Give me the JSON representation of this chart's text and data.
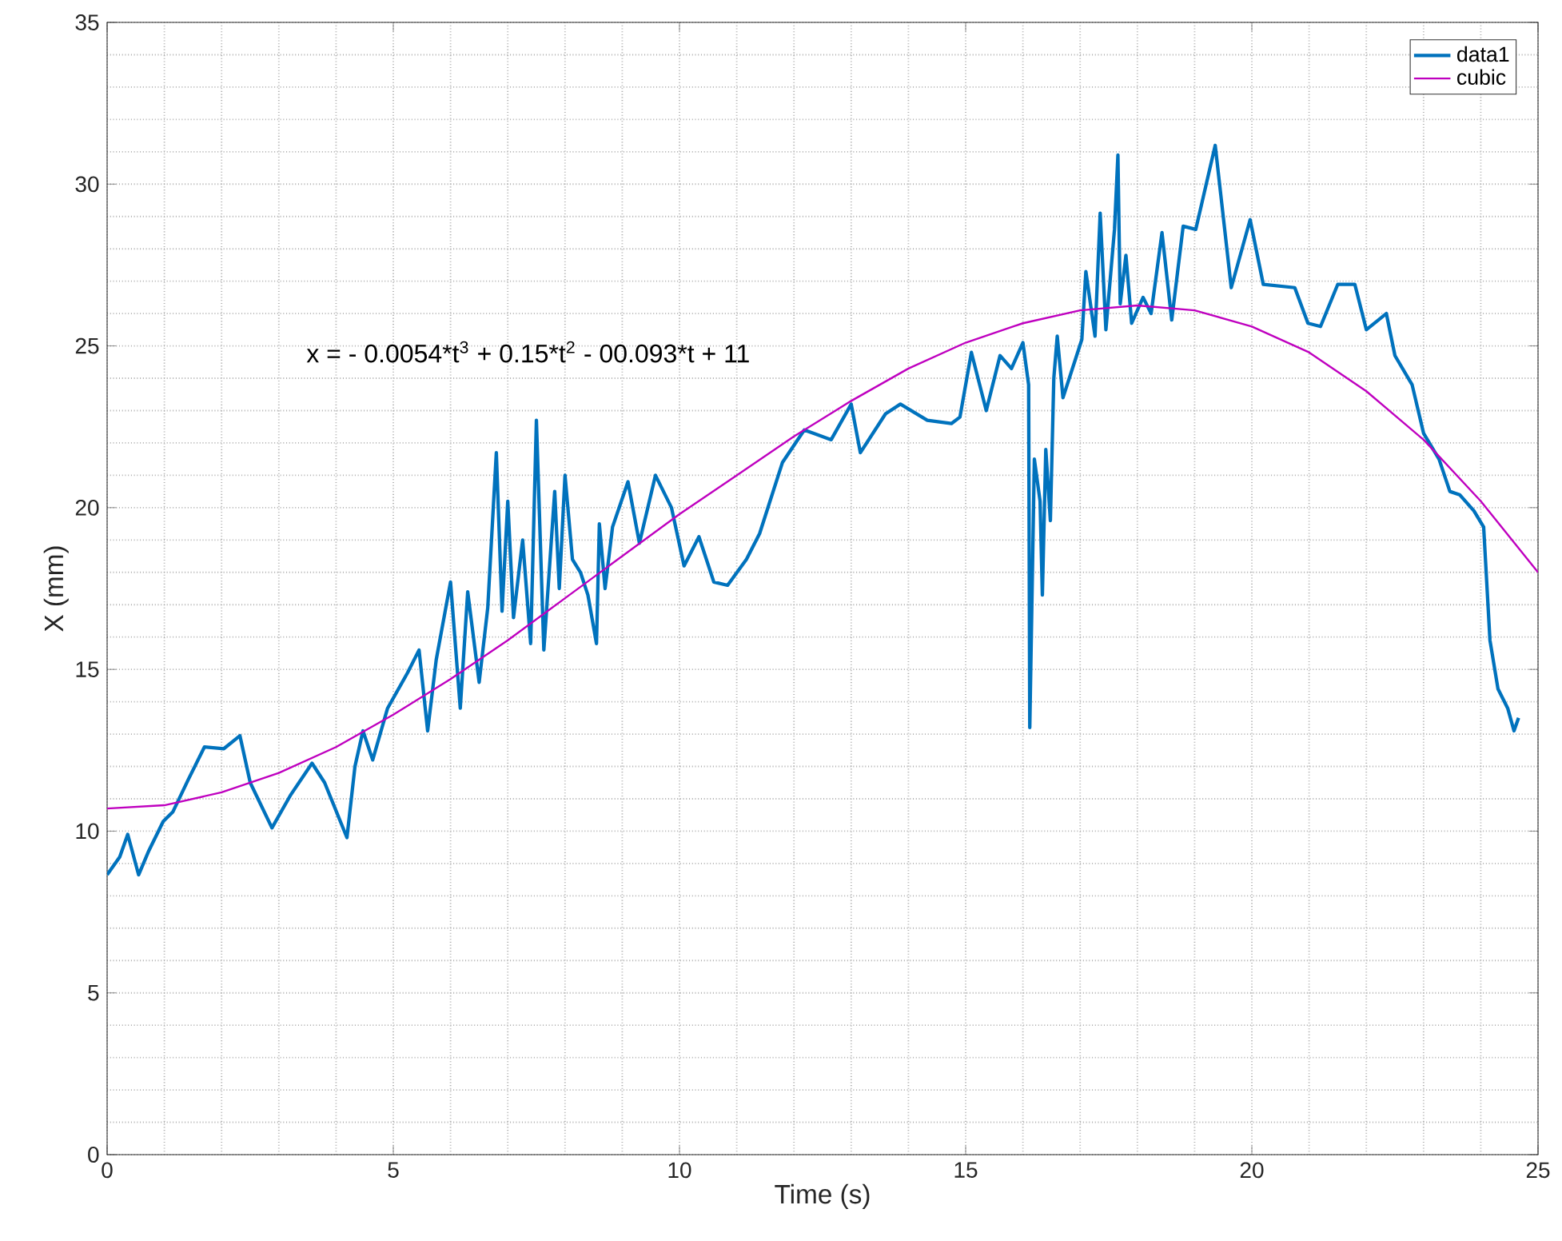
{
  "chart_data": {
    "type": "line",
    "xlabel": "Time (s)",
    "ylabel": "X (mm)",
    "xlim": [
      0,
      25
    ],
    "ylim": [
      0,
      35
    ],
    "xticks": [
      0,
      5,
      10,
      15,
      20,
      25
    ],
    "yticks": [
      0,
      5,
      10,
      15,
      20,
      25,
      30,
      35
    ],
    "grid": true,
    "legend": "top right",
    "marker": "none",
    "line_style": "solid",
    "annotations": [
      "x = - 0.0054*t$^{3}$ + 0.15*t$^{2}$ - 00.093*t + 11"
    ],
    "series": [
      {
        "name": "data1",
        "color": "#0072bd",
        "x": [
          0,
          0.22,
          0.36,
          0.55,
          0.73,
          0.98,
          1.15,
          1.42,
          1.7,
          2.04,
          2.32,
          2.5,
          2.88,
          3.2,
          3.58,
          3.8,
          4.19,
          4.33,
          4.47,
          4.64,
          4.9,
          5.25,
          5.45,
          5.6,
          5.75,
          6.0,
          6.17,
          6.3,
          6.5,
          6.65,
          6.8,
          6.9,
          7.0,
          7.1,
          7.26,
          7.4,
          7.5,
          7.63,
          7.82,
          7.9,
          8.0,
          8.13,
          8.27,
          8.4,
          8.55,
          8.6,
          8.7,
          8.83,
          9.1,
          9.3,
          9.58,
          9.86,
          10.08,
          10.34,
          10.6,
          10.84,
          11.17,
          11.4,
          11.8,
          12.18,
          12.65,
          13.0,
          13.16,
          13.6,
          13.86,
          14.33,
          14.75,
          14.9,
          15.1,
          15.36,
          15.6,
          15.8,
          16.0,
          16.1,
          16.12,
          16.2,
          16.3,
          16.34,
          16.4,
          16.48,
          16.54,
          16.6,
          16.7,
          17.03,
          17.1,
          17.26,
          17.35,
          17.45,
          17.6,
          17.66,
          17.7,
          17.8,
          17.9,
          18.1,
          18.24,
          18.43,
          18.6,
          18.8,
          19.02,
          19.36,
          19.64,
          19.97,
          20.2,
          20.75,
          20.98,
          21.2,
          21.5,
          21.8,
          22.0,
          22.35,
          22.5,
          22.8,
          23.0,
          23.27,
          23.46,
          23.63,
          23.88,
          24.05,
          24.16,
          24.3,
          24.47,
          24.58,
          24.66
        ],
        "values": [
          8.65,
          9.2,
          9.9,
          8.65,
          9.4,
          10.3,
          10.6,
          11.6,
          12.6,
          12.55,
          12.95,
          11.5,
          10.1,
          11.1,
          12.1,
          11.5,
          9.8,
          12.0,
          13.1,
          12.2,
          13.8,
          14.9,
          15.6,
          13.1,
          15.3,
          17.7,
          13.8,
          17.4,
          14.6,
          16.9,
          21.7,
          16.8,
          20.2,
          16.6,
          19.0,
          15.8,
          22.7,
          15.6,
          20.5,
          17.5,
          21.0,
          18.4,
          18.0,
          17.3,
          15.8,
          19.5,
          17.5,
          19.4,
          20.8,
          18.9,
          21.0,
          20.0,
          18.2,
          19.1,
          17.7,
          17.6,
          18.4,
          19.2,
          21.4,
          22.4,
          22.1,
          23.2,
          21.7,
          22.9,
          23.2,
          22.7,
          22.6,
          22.8,
          24.8,
          23.0,
          24.7,
          24.3,
          25.1,
          23.8,
          13.2,
          21.5,
          20.2,
          17.3,
          21.8,
          19.6,
          24.0,
          25.3,
          23.4,
          25.2,
          27.3,
          25.3,
          29.1,
          25.5,
          28.6,
          30.9,
          26.3,
          27.8,
          25.7,
          26.5,
          26.0,
          28.5,
          25.8,
          28.7,
          28.6,
          31.2,
          26.8,
          28.9,
          26.9,
          26.8,
          25.7,
          25.6,
          26.9,
          26.9,
          25.5,
          26.0,
          24.7,
          23.8,
          22.3,
          21.5,
          20.5,
          20.4,
          19.9,
          19.4,
          15.9,
          14.4,
          13.8,
          13.1,
          13.5
        ]
      },
      {
        "name": "cubic",
        "color": "#bf00bf",
        "x": [
          0,
          1,
          2,
          3,
          4,
          5,
          6,
          7,
          8,
          9,
          10,
          11,
          12,
          13,
          14,
          15,
          16,
          17,
          18,
          19,
          20,
          21,
          22,
          23,
          24,
          25
        ],
        "values": [
          10.7,
          10.8,
          11.2,
          11.8,
          12.6,
          13.6,
          14.7,
          15.9,
          17.2,
          18.5,
          19.8,
          21.0,
          22.2,
          23.3,
          24.3,
          25.1,
          25.7,
          26.1,
          26.25,
          26.1,
          25.6,
          24.8,
          23.6,
          22.1,
          20.2,
          18.0
        ]
      }
    ]
  }
}
